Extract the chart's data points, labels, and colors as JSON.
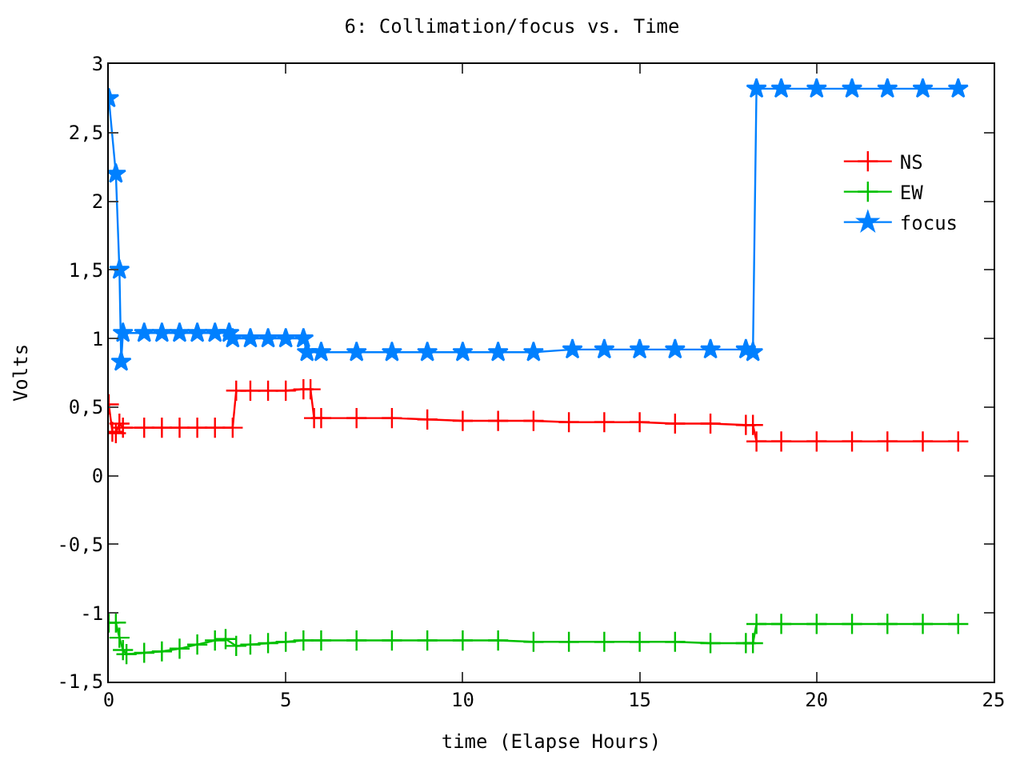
{
  "chart_data": {
    "type": "line",
    "title": "6: Collimation/focus vs. Time",
    "xlabel": "time (Elapse Hours)",
    "ylabel": "Volts",
    "xlim": [
      0,
      25
    ],
    "xticks": [
      0,
      5,
      10,
      15,
      20,
      25
    ],
    "ylim": [
      -1.5,
      3
    ],
    "yticks": [
      {
        "value": -1.5,
        "label": "-1,5"
      },
      -1,
      {
        "value": -0.5,
        "label": "-0,5"
      },
      0,
      {
        "value": 0.5,
        "label": "0,5"
      },
      1,
      {
        "value": 1.5,
        "label": "1,5"
      },
      2,
      {
        "value": 2.5,
        "label": "2,5"
      },
      3
    ],
    "legend": "top right",
    "line_style": "solid",
    "series": [
      {
        "name": "NS",
        "color": "#ff0000",
        "marker": "cross",
        "x": [
          0,
          0.1,
          0.2,
          0.3,
          0.4,
          1,
          1.5,
          2,
          2.5,
          3,
          3.5,
          3.6,
          4,
          4.5,
          5,
          5.5,
          5.7,
          5.8,
          6,
          7,
          8,
          9,
          10,
          11,
          12,
          13,
          14,
          15,
          16,
          17,
          18,
          18.2,
          18.3,
          19,
          20,
          21,
          22,
          23,
          24
        ],
        "values": [
          0.52,
          0.32,
          0.31,
          0.38,
          0.35,
          0.35,
          0.35,
          0.35,
          0.35,
          0.35,
          0.35,
          0.62,
          0.62,
          0.62,
          0.62,
          0.63,
          0.63,
          0.42,
          0.42,
          0.42,
          0.42,
          0.41,
          0.4,
          0.4,
          0.4,
          0.39,
          0.39,
          0.39,
          0.38,
          0.38,
          0.37,
          0.37,
          0.25,
          0.25,
          0.25,
          0.25,
          0.25,
          0.25,
          0.25
        ]
      },
      {
        "name": "EW",
        "color": "#00c000",
        "marker": "cross",
        "x": [
          0,
          0.2,
          0.3,
          0.4,
          0.5,
          1,
          1.5,
          2,
          2.5,
          3,
          3.3,
          3.6,
          4,
          4.5,
          5,
          5.5,
          6,
          7,
          8,
          9,
          10,
          11,
          12,
          13,
          14,
          15,
          16,
          17,
          18,
          18.2,
          18.3,
          19,
          20,
          21,
          22,
          23,
          24
        ],
        "values": [
          -1.07,
          -1.07,
          -1.18,
          -1.27,
          -1.3,
          -1.29,
          -1.28,
          -1.26,
          -1.23,
          -1.2,
          -1.19,
          -1.24,
          -1.23,
          -1.22,
          -1.21,
          -1.2,
          -1.2,
          -1.2,
          -1.2,
          -1.2,
          -1.2,
          -1.2,
          -1.21,
          -1.21,
          -1.21,
          -1.21,
          -1.21,
          -1.22,
          -1.22,
          -1.22,
          -1.08,
          -1.08,
          -1.08,
          -1.08,
          -1.08,
          -1.08,
          -1.08
        ]
      },
      {
        "name": "focus",
        "color": "#0080ff",
        "marker": "star",
        "x": [
          0,
          0.2,
          0.3,
          0.35,
          0.4,
          1,
          1.5,
          2,
          2.5,
          3,
          3.4,
          3.5,
          4,
          4.5,
          5,
          5.5,
          5.6,
          6,
          7,
          8,
          9,
          10,
          11,
          12,
          13.1,
          14,
          15,
          16,
          17,
          18,
          18.2,
          18.3,
          19,
          20,
          21,
          22,
          23,
          24
        ],
        "values": [
          2.75,
          2.2,
          1.5,
          0.83,
          1.04,
          1.04,
          1.04,
          1.04,
          1.04,
          1.04,
          1.04,
          1.0,
          1.0,
          1.0,
          1.0,
          1.0,
          0.9,
          0.9,
          0.9,
          0.9,
          0.9,
          0.9,
          0.9,
          0.9,
          0.92,
          0.92,
          0.92,
          0.92,
          0.92,
          0.92,
          0.9,
          2.82,
          2.82,
          2.82,
          2.82,
          2.82,
          2.82,
          2.82
        ]
      }
    ]
  }
}
